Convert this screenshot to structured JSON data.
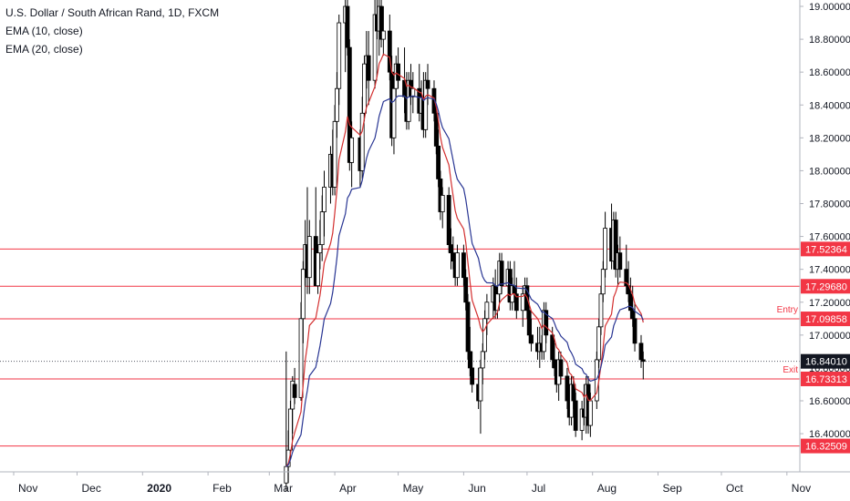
{
  "chart_data": {
    "type": "candlestick",
    "title": "U.S. Dollar / South African Rand, 1D, FXCM",
    "indicators": [
      {
        "name": "EMA (10, close)",
        "color": "#d32f2f"
      },
      {
        "name": "EMA (20, close)",
        "color": "#283593"
      }
    ],
    "x_labels": [
      "Nov",
      "Dec",
      "2020",
      "Feb",
      "Mar",
      "Apr",
      "May",
      "Jun",
      "Jul",
      "Aug",
      "Sep",
      "Oct",
      "Nov"
    ],
    "y_ticks": [
      "19.00000",
      "18.80000",
      "18.60000",
      "18.40000",
      "18.20000",
      "18.00000",
      "17.80000",
      "17.60000",
      "17.40000",
      "17.20000",
      "17.00000",
      "16.80000",
      "16.60000",
      "16.40000"
    ],
    "ylim": [
      16.3,
      19.05
    ],
    "horizontal_lines": [
      {
        "value": 17.52364,
        "label": "17.52364"
      },
      {
        "value": 17.2968,
        "label": "17.29680"
      },
      {
        "value": 17.09858,
        "label": "17.09858",
        "tag": "Entry"
      },
      {
        "value": 16.73313,
        "label": "16.73313",
        "tag": "Exit"
      },
      {
        "value": 16.32509,
        "label": "16.32509"
      }
    ],
    "last_price": {
      "value": 16.8401,
      "label": "16.84010"
    },
    "candles": [
      {
        "date": "2020-03-09",
        "open": 16.1,
        "high": 16.9,
        "low": 16.05,
        "close": 16.2
      },
      {
        "date": "2020-03-10",
        "open": 16.2,
        "high": 16.42,
        "low": 16.1,
        "close": 16.3
      },
      {
        "date": "2020-03-11",
        "open": 16.3,
        "high": 16.6,
        "low": 16.25,
        "close": 16.55
      },
      {
        "date": "2020-03-12",
        "open": 16.55,
        "high": 16.75,
        "low": 16.4,
        "close": 16.72
      },
      {
        "date": "2020-03-13",
        "open": 16.7,
        "high": 16.8,
        "low": 16.58,
        "close": 16.62
      },
      {
        "date": "2020-03-16",
        "open": 16.62,
        "high": 17.2,
        "low": 16.6,
        "close": 17.1
      },
      {
        "date": "2020-03-17",
        "open": 17.1,
        "high": 17.45,
        "low": 16.95,
        "close": 17.4
      },
      {
        "date": "2020-03-18",
        "open": 17.4,
        "high": 17.7,
        "low": 17.3,
        "close": 17.55
      },
      {
        "date": "2020-03-19",
        "open": 17.55,
        "high": 17.9,
        "low": 17.25,
        "close": 17.35
      },
      {
        "date": "2020-03-20",
        "open": 17.35,
        "high": 17.7,
        "low": 17.25,
        "close": 17.6
      },
      {
        "date": "2020-03-23",
        "open": 17.6,
        "high": 17.9,
        "low": 17.3,
        "close": 17.3
      },
      {
        "date": "2020-03-24",
        "open": 17.3,
        "high": 17.55,
        "low": 17.25,
        "close": 17.5
      },
      {
        "date": "2020-03-25",
        "open": 17.5,
        "high": 17.7,
        "low": 17.4,
        "close": 17.55
      },
      {
        "date": "2020-03-26",
        "open": 17.55,
        "high": 17.85,
        "low": 17.45,
        "close": 17.75
      },
      {
        "date": "2020-03-27",
        "open": 17.75,
        "high": 18.0,
        "low": 17.6,
        "close": 17.9
      },
      {
        "date": "2020-03-30",
        "open": 17.9,
        "high": 18.15,
        "low": 17.8,
        "close": 18.1
      },
      {
        "date": "2020-03-31",
        "open": 18.1,
        "high": 18.25,
        "low": 17.85,
        "close": 17.9
      },
      {
        "date": "2020-04-01",
        "open": 17.9,
        "high": 18.4,
        "low": 17.85,
        "close": 18.3
      },
      {
        "date": "2020-04-02",
        "open": 18.3,
        "high": 18.6,
        "low": 18.2,
        "close": 18.5
      },
      {
        "date": "2020-04-03",
        "open": 18.5,
        "high": 18.95,
        "low": 18.4,
        "close": 18.9
      },
      {
        "date": "2020-04-06",
        "open": 18.9,
        "high": 19.1,
        "low": 18.6,
        "close": 19.0
      },
      {
        "date": "2020-04-07",
        "open": 19.0,
        "high": 19.1,
        "low": 18.7,
        "close": 18.75
      },
      {
        "date": "2020-04-08",
        "open": 18.75,
        "high": 18.8,
        "low": 18.0,
        "close": 18.05
      },
      {
        "date": "2020-04-09",
        "open": 18.05,
        "high": 18.3,
        "low": 17.9,
        "close": 18.2
      },
      {
        "date": "2020-04-13",
        "open": 18.2,
        "high": 18.25,
        "low": 17.9,
        "close": 18.0
      },
      {
        "date": "2020-04-14",
        "open": 18.0,
        "high": 18.45,
        "low": 17.95,
        "close": 18.35
      },
      {
        "date": "2020-04-15",
        "open": 18.35,
        "high": 18.7,
        "low": 18.3,
        "close": 18.65
      },
      {
        "date": "2020-04-16",
        "open": 18.65,
        "high": 18.85,
        "low": 18.5,
        "close": 18.7
      },
      {
        "date": "2020-04-17",
        "open": 18.7,
        "high": 18.85,
        "low": 18.4,
        "close": 18.55
      },
      {
        "date": "2020-04-20",
        "open": 18.55,
        "high": 19.05,
        "low": 18.5,
        "close": 18.95
      },
      {
        "date": "2020-04-21",
        "open": 18.95,
        "high": 19.1,
        "low": 18.8,
        "close": 18.85
      },
      {
        "date": "2020-04-22",
        "open": 18.85,
        "high": 19.1,
        "low": 18.7,
        "close": 19.0
      },
      {
        "date": "2020-04-23",
        "open": 19.0,
        "high": 19.1,
        "low": 18.75,
        "close": 18.8
      },
      {
        "date": "2020-04-24",
        "open": 18.8,
        "high": 19.0,
        "low": 18.7,
        "close": 18.85
      },
      {
        "date": "2020-04-27",
        "open": 18.85,
        "high": 18.95,
        "low": 18.55,
        "close": 18.6
      },
      {
        "date": "2020-04-28",
        "open": 18.6,
        "high": 18.7,
        "low": 18.15,
        "close": 18.2
      },
      {
        "date": "2020-04-29",
        "open": 18.2,
        "high": 18.55,
        "low": 18.1,
        "close": 18.5
      },
      {
        "date": "2020-04-30",
        "open": 18.5,
        "high": 18.7,
        "low": 18.45,
        "close": 18.65
      },
      {
        "date": "2020-05-01",
        "open": 18.65,
        "high": 18.75,
        "low": 18.5,
        "close": 18.55
      },
      {
        "date": "2020-05-04",
        "open": 18.55,
        "high": 18.75,
        "low": 18.35,
        "close": 18.45
      },
      {
        "date": "2020-05-05",
        "open": 18.45,
        "high": 18.6,
        "low": 18.25,
        "close": 18.3
      },
      {
        "date": "2020-05-06",
        "open": 18.3,
        "high": 18.6,
        "low": 18.25,
        "close": 18.55
      },
      {
        "date": "2020-05-07",
        "open": 18.55,
        "high": 18.65,
        "low": 18.4,
        "close": 18.45
      },
      {
        "date": "2020-05-08",
        "open": 18.45,
        "high": 18.6,
        "low": 18.35,
        "close": 18.5
      },
      {
        "date": "2020-05-11",
        "open": 18.5,
        "high": 18.65,
        "low": 18.3,
        "close": 18.35
      },
      {
        "date": "2020-05-12",
        "open": 18.35,
        "high": 18.55,
        "low": 18.25,
        "close": 18.45
      },
      {
        "date": "2020-05-13",
        "open": 18.45,
        "high": 18.6,
        "low": 18.2,
        "close": 18.25
      },
      {
        "date": "2020-05-14",
        "open": 18.25,
        "high": 18.6,
        "low": 18.2,
        "close": 18.55
      },
      {
        "date": "2020-05-15",
        "open": 18.55,
        "high": 18.65,
        "low": 18.4,
        "close": 18.5
      },
      {
        "date": "2020-05-18",
        "open": 18.5,
        "high": 18.55,
        "low": 18.3,
        "close": 18.35
      },
      {
        "date": "2020-05-19",
        "open": 18.35,
        "high": 18.4,
        "low": 18.1,
        "close": 18.15
      },
      {
        "date": "2020-05-20",
        "open": 18.15,
        "high": 18.25,
        "low": 17.9,
        "close": 17.95
      },
      {
        "date": "2020-05-21",
        "open": 17.95,
        "high": 18.0,
        "low": 17.7,
        "close": 17.75
      },
      {
        "date": "2020-05-22",
        "open": 17.75,
        "high": 17.9,
        "low": 17.65,
        "close": 17.85
      },
      {
        "date": "2020-05-25",
        "open": 17.85,
        "high": 17.9,
        "low": 17.5,
        "close": 17.55
      },
      {
        "date": "2020-05-26",
        "open": 17.55,
        "high": 17.65,
        "low": 17.4,
        "close": 17.5
      },
      {
        "date": "2020-05-27",
        "open": 17.5,
        "high": 17.6,
        "low": 17.4,
        "close": 17.45
      },
      {
        "date": "2020-05-28",
        "open": 17.45,
        "high": 17.5,
        "low": 17.3,
        "close": 17.35
      },
      {
        "date": "2020-05-29",
        "open": 17.35,
        "high": 17.55,
        "low": 17.3,
        "close": 17.5
      },
      {
        "date": "2020-06-01",
        "open": 17.5,
        "high": 17.55,
        "low": 17.3,
        "close": 17.35
      },
      {
        "date": "2020-06-02",
        "open": 17.35,
        "high": 17.4,
        "low": 17.15,
        "close": 17.2
      },
      {
        "date": "2020-06-03",
        "open": 17.2,
        "high": 17.25,
        "low": 16.85,
        "close": 16.9
      },
      {
        "date": "2020-06-04",
        "open": 16.9,
        "high": 17.05,
        "low": 16.75,
        "close": 16.8
      },
      {
        "date": "2020-06-05",
        "open": 16.8,
        "high": 16.9,
        "low": 16.65,
        "close": 16.7
      },
      {
        "date": "2020-06-08",
        "open": 16.7,
        "high": 16.8,
        "low": 16.55,
        "close": 16.6
      },
      {
        "date": "2020-06-09",
        "open": 16.6,
        "high": 16.85,
        "low": 16.4,
        "close": 16.8
      },
      {
        "date": "2020-06-10",
        "open": 16.8,
        "high": 16.95,
        "low": 16.7,
        "close": 16.9
      },
      {
        "date": "2020-06-11",
        "open": 16.9,
        "high": 17.15,
        "low": 16.85,
        "close": 17.1
      },
      {
        "date": "2020-06-12",
        "open": 17.1,
        "high": 17.25,
        "low": 17.0,
        "close": 17.2
      },
      {
        "date": "2020-06-15",
        "open": 17.2,
        "high": 17.35,
        "low": 17.1,
        "close": 17.3
      },
      {
        "date": "2020-06-16",
        "open": 17.3,
        "high": 17.4,
        "low": 17.1,
        "close": 17.15
      },
      {
        "date": "2020-06-17",
        "open": 17.15,
        "high": 17.3,
        "low": 17.1,
        "close": 17.25
      },
      {
        "date": "2020-06-18",
        "open": 17.25,
        "high": 17.5,
        "low": 17.2,
        "close": 17.45
      },
      {
        "date": "2020-06-19",
        "open": 17.45,
        "high": 17.5,
        "low": 17.25,
        "close": 17.3
      },
      {
        "date": "2020-06-22",
        "open": 17.3,
        "high": 17.45,
        "low": 17.2,
        "close": 17.4
      },
      {
        "date": "2020-06-23",
        "open": 17.4,
        "high": 17.45,
        "low": 17.15,
        "close": 17.2
      },
      {
        "date": "2020-06-24",
        "open": 17.2,
        "high": 17.35,
        "low": 17.15,
        "close": 17.3
      },
      {
        "date": "2020-06-25",
        "open": 17.3,
        "high": 17.45,
        "low": 17.2,
        "close": 17.25
      },
      {
        "date": "2020-06-26",
        "open": 17.25,
        "high": 17.35,
        "low": 17.1,
        "close": 17.15
      },
      {
        "date": "2020-06-29",
        "open": 17.15,
        "high": 17.3,
        "low": 17.05,
        "close": 17.25
      },
      {
        "date": "2020-06-30",
        "open": 17.25,
        "high": 17.35,
        "low": 17.15,
        "close": 17.3
      },
      {
        "date": "2020-07-01",
        "open": 17.3,
        "high": 17.35,
        "low": 17.1,
        "close": 17.15
      },
      {
        "date": "2020-07-02",
        "open": 17.15,
        "high": 17.2,
        "low": 16.95,
        "close": 17.0
      },
      {
        "date": "2020-07-03",
        "open": 17.0,
        "high": 17.1,
        "low": 16.9,
        "close": 16.95
      },
      {
        "date": "2020-07-06",
        "open": 16.95,
        "high": 17.05,
        "low": 16.85,
        "close": 16.9
      },
      {
        "date": "2020-07-07",
        "open": 16.9,
        "high": 17.05,
        "low": 16.8,
        "close": 16.95
      },
      {
        "date": "2020-07-08",
        "open": 16.95,
        "high": 17.0,
        "low": 16.85,
        "close": 16.9
      },
      {
        "date": "2020-07-09",
        "open": 16.9,
        "high": 17.2,
        "low": 16.85,
        "close": 17.15
      },
      {
        "date": "2020-07-10",
        "open": 17.15,
        "high": 17.2,
        "low": 16.95,
        "close": 17.0
      },
      {
        "date": "2020-07-13",
        "open": 17.0,
        "high": 17.05,
        "low": 16.8,
        "close": 16.85
      },
      {
        "date": "2020-07-14",
        "open": 16.85,
        "high": 16.95,
        "low": 16.75,
        "close": 16.8
      },
      {
        "date": "2020-07-15",
        "open": 16.8,
        "high": 16.85,
        "low": 16.65,
        "close": 16.7
      },
      {
        "date": "2020-07-16",
        "open": 16.7,
        "high": 16.9,
        "low": 16.6,
        "close": 16.85
      },
      {
        "date": "2020-07-17",
        "open": 16.85,
        "high": 16.9,
        "low": 16.7,
        "close": 16.75
      },
      {
        "date": "2020-07-20",
        "open": 16.75,
        "high": 16.8,
        "low": 16.55,
        "close": 16.6
      },
      {
        "date": "2020-07-21",
        "open": 16.6,
        "high": 16.7,
        "low": 16.45,
        "close": 16.5
      },
      {
        "date": "2020-07-22",
        "open": 16.5,
        "high": 16.75,
        "low": 16.45,
        "close": 16.7
      },
      {
        "date": "2020-07-23",
        "open": 16.7,
        "high": 16.75,
        "low": 16.55,
        "close": 16.6
      },
      {
        "date": "2020-07-24",
        "open": 16.6,
        "high": 16.65,
        "low": 16.38,
        "close": 16.42
      },
      {
        "date": "2020-07-27",
        "open": 16.42,
        "high": 16.6,
        "low": 16.36,
        "close": 16.55
      },
      {
        "date": "2020-07-28",
        "open": 16.55,
        "high": 16.7,
        "low": 16.45,
        "close": 16.5
      },
      {
        "date": "2020-07-29",
        "open": 16.5,
        "high": 16.75,
        "low": 16.4,
        "close": 16.7
      },
      {
        "date": "2020-07-30",
        "open": 16.7,
        "high": 16.75,
        "low": 16.4,
        "close": 16.45
      },
      {
        "date": "2020-07-31",
        "open": 16.45,
        "high": 16.65,
        "low": 16.38,
        "close": 16.6
      },
      {
        "date": "2020-08-03",
        "open": 16.6,
        "high": 16.9,
        "low": 16.55,
        "close": 16.85
      },
      {
        "date": "2020-08-04",
        "open": 16.85,
        "high": 17.1,
        "low": 16.8,
        "close": 17.05
      },
      {
        "date": "2020-08-05",
        "open": 17.05,
        "high": 17.3,
        "low": 17.0,
        "close": 17.25
      },
      {
        "date": "2020-08-06",
        "open": 17.25,
        "high": 17.45,
        "low": 17.2,
        "close": 17.4
      },
      {
        "date": "2020-08-07",
        "open": 17.4,
        "high": 17.75,
        "low": 17.35,
        "close": 17.65
      },
      {
        "date": "2020-08-10",
        "open": 17.65,
        "high": 17.8,
        "low": 17.4,
        "close": 17.45
      },
      {
        "date": "2020-08-11",
        "open": 17.45,
        "high": 17.75,
        "low": 17.4,
        "close": 17.7
      },
      {
        "date": "2020-08-12",
        "open": 17.7,
        "high": 17.75,
        "low": 17.35,
        "close": 17.4
      },
      {
        "date": "2020-08-13",
        "open": 17.4,
        "high": 17.55,
        "low": 17.3,
        "close": 17.5
      },
      {
        "date": "2020-08-14",
        "open": 17.5,
        "high": 17.6,
        "low": 17.35,
        "close": 17.4
      },
      {
        "date": "2020-08-17",
        "open": 17.4,
        "high": 17.55,
        "low": 17.25,
        "close": 17.3
      },
      {
        "date": "2020-08-18",
        "open": 17.3,
        "high": 17.45,
        "low": 17.2,
        "close": 17.25
      },
      {
        "date": "2020-08-19",
        "open": 17.25,
        "high": 17.35,
        "low": 17.1,
        "close": 17.15
      },
      {
        "date": "2020-08-20",
        "open": 17.15,
        "high": 17.3,
        "low": 17.05,
        "close": 17.1
      },
      {
        "date": "2020-08-21",
        "open": 17.1,
        "high": 17.2,
        "low": 16.9,
        "close": 16.95
      },
      {
        "date": "2020-08-24",
        "open": 16.95,
        "high": 17.0,
        "low": 16.8,
        "close": 16.85
      },
      {
        "date": "2020-08-25",
        "open": 16.85,
        "high": 16.9,
        "low": 16.73,
        "close": 16.84
      }
    ]
  }
}
